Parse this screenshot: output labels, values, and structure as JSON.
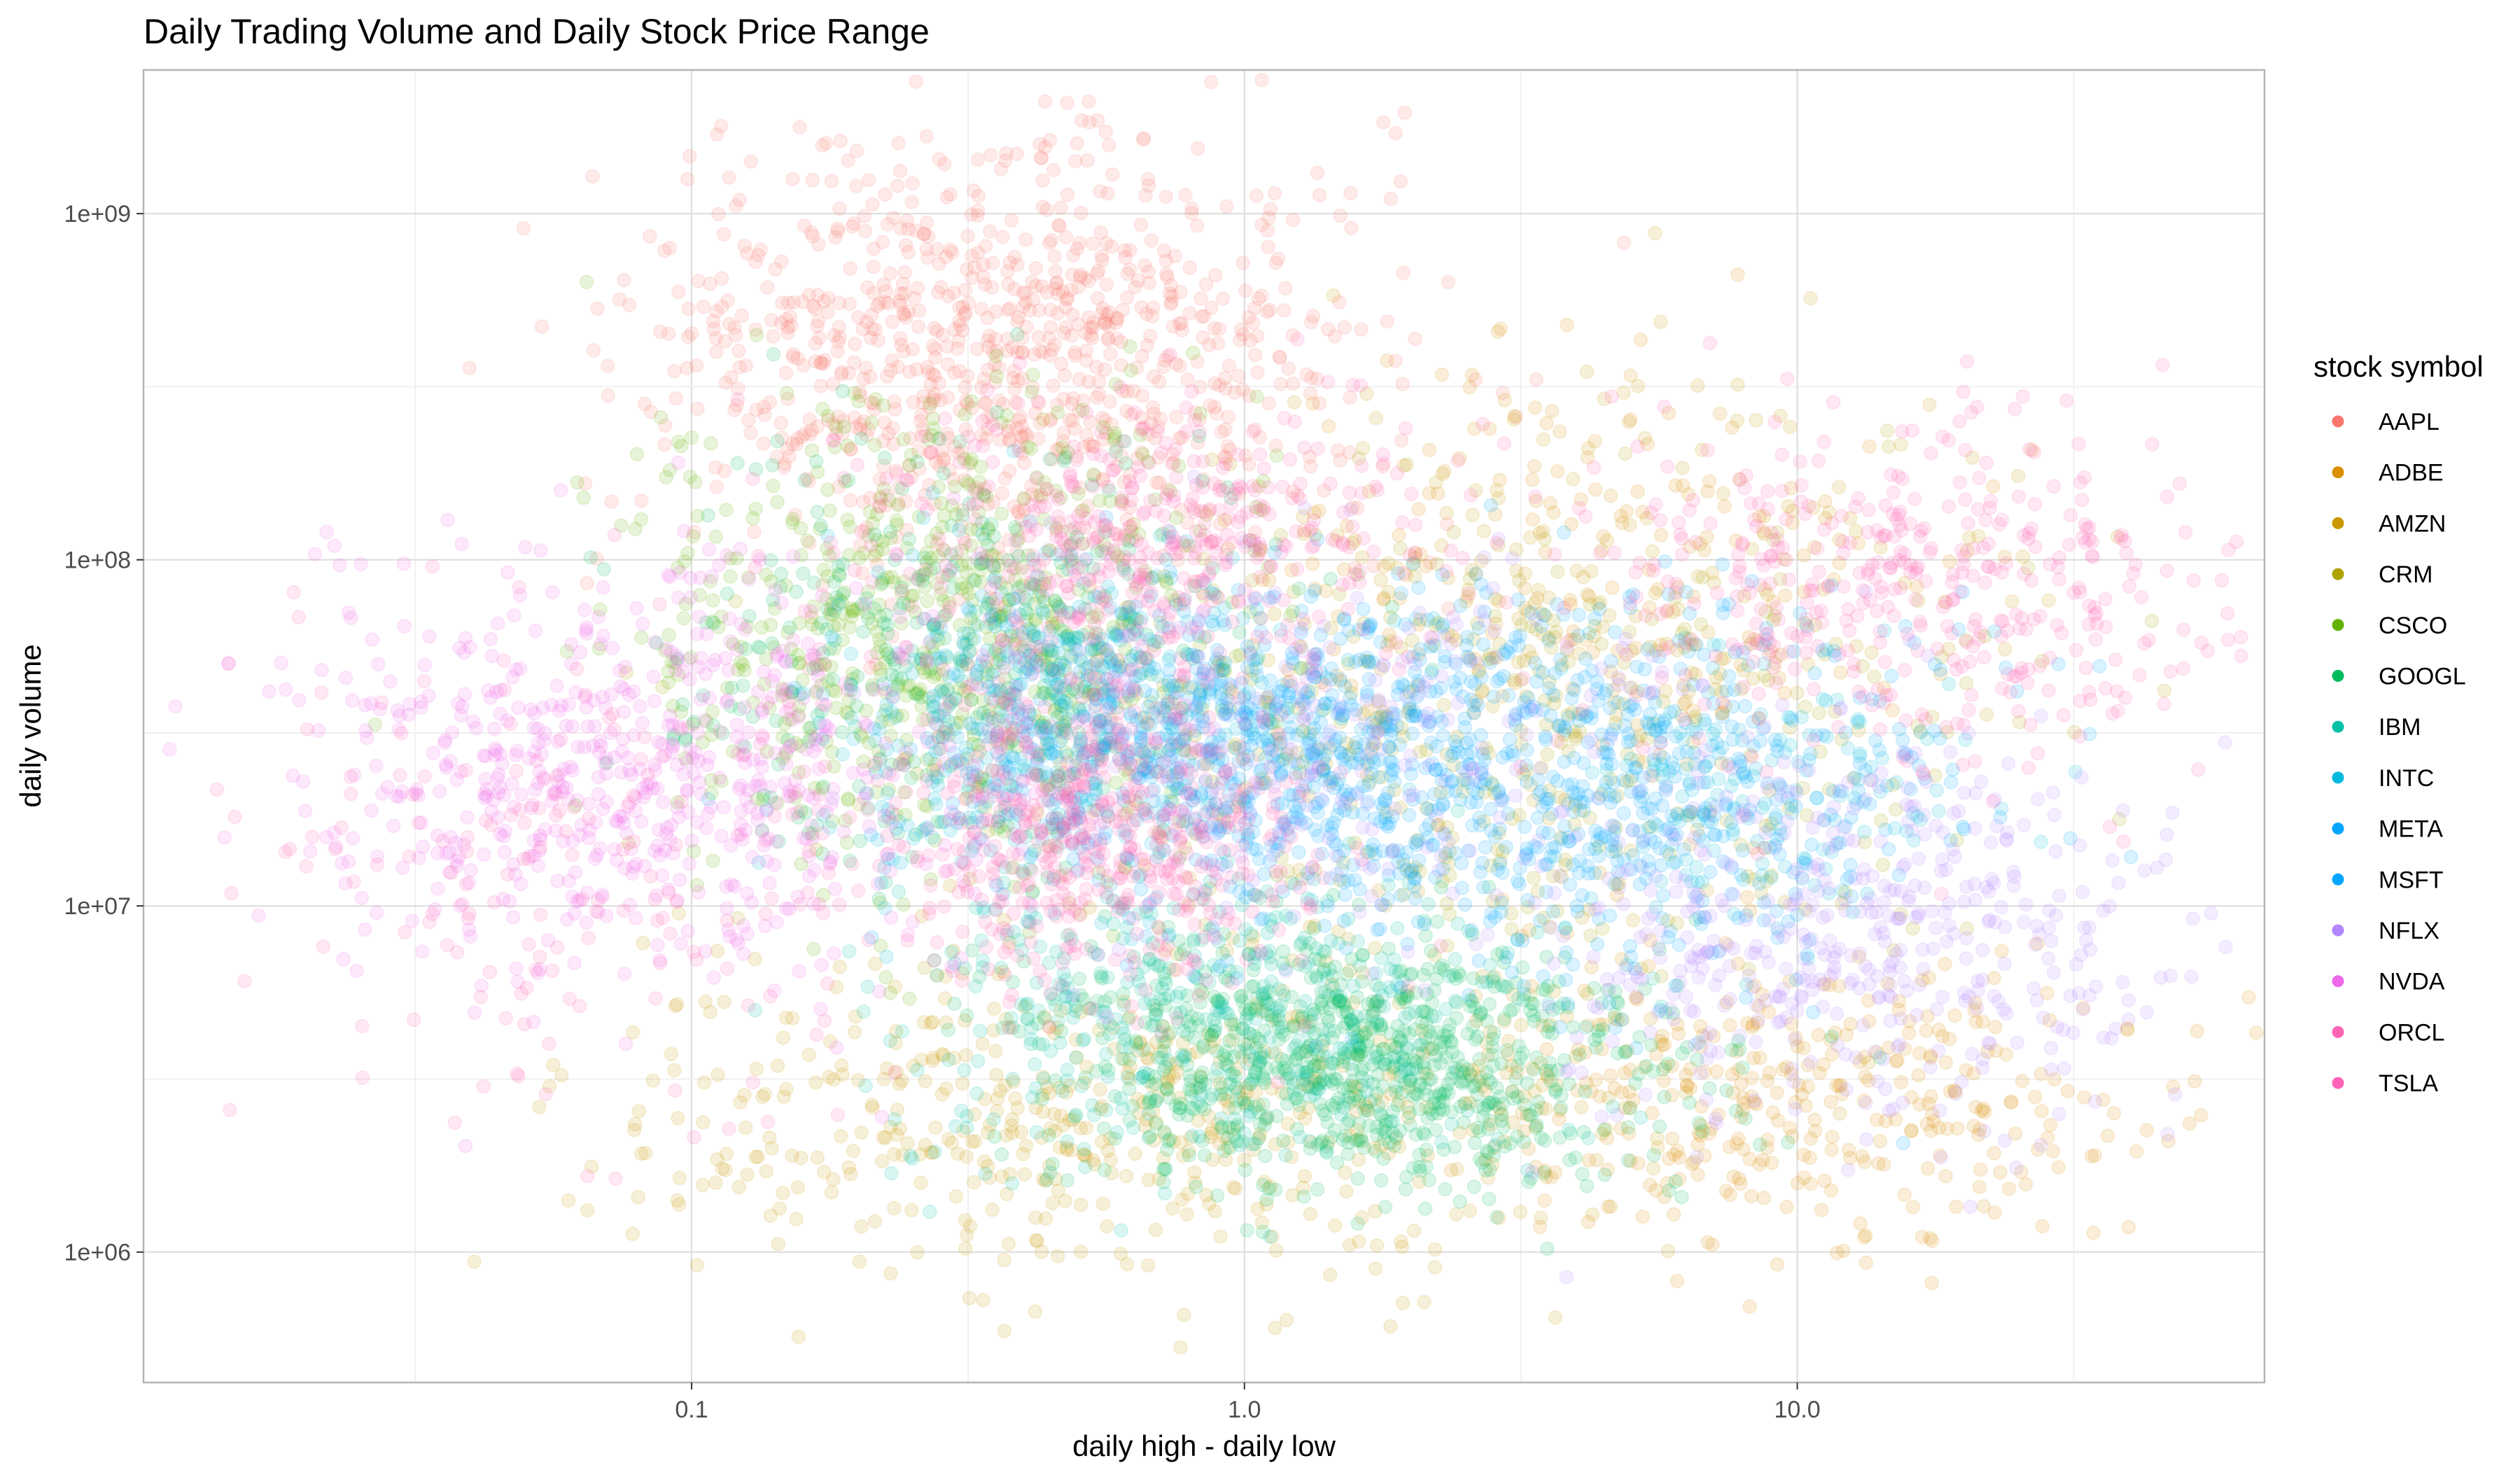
{
  "chart_data": {
    "type": "scatter",
    "title": "Daily Trading Volume and Daily Stock Price Range",
    "xlabel": "daily high - daily low",
    "ylabel": "daily volume",
    "x_scale": "log10",
    "y_scale": "log10",
    "xlim": [
      0.0102,
      70
    ],
    "ylim": [
      420000,
      2600000000
    ],
    "x_ticks": [
      0.1,
      1.0,
      10.0
    ],
    "x_tick_labels": [
      "0.1",
      "1.0",
      "10.0"
    ],
    "y_ticks": [
      1000000,
      10000000,
      100000000,
      1000000000
    ],
    "y_tick_labels": [
      "1e+06",
      "1e+07",
      "1e+08",
      "1e+09"
    ],
    "grid": true,
    "point_alpha": 0.15,
    "legend": {
      "title": "stock symbol",
      "position": "right"
    },
    "series": [
      {
        "name": "AAPL",
        "color": "#F8766D",
        "clusters": [
          {
            "x": 0.38,
            "y": 400000000,
            "sx": 0.32,
            "sy": 0.32,
            "n": 950
          }
        ]
      },
      {
        "name": "ADBE",
        "color": "#DB8E00",
        "clusters": [
          {
            "x": 10.0,
            "y": 2800000,
            "sx": 0.32,
            "sy": 0.22,
            "n": 380
          },
          {
            "x": 4.0,
            "y": 100000000,
            "sx": 0.3,
            "sy": 0.3,
            "n": 180
          }
        ]
      },
      {
        "name": "AMZN",
        "color": "#C79800",
        "clusters": [
          {
            "x": 0.6,
            "y": 2600000,
            "sx": 0.45,
            "sy": 0.25,
            "n": 550
          },
          {
            "x": 5.0,
            "y": 80000000,
            "sx": 0.35,
            "sy": 0.35,
            "n": 200
          }
        ]
      },
      {
        "name": "CRM",
        "color": "#AEA200",
        "clusters": [
          {
            "x": 2.5,
            "y": 30000000,
            "sx": 0.45,
            "sy": 0.35,
            "n": 420
          }
        ]
      },
      {
        "name": "CSCO",
        "color": "#64B200",
        "clusters": [
          {
            "x": 0.28,
            "y": 60000000,
            "sx": 0.28,
            "sy": 0.35,
            "n": 650
          }
        ]
      },
      {
        "name": "GOOGL",
        "color": "#00BD5C",
        "clusters": [
          {
            "x": 1.6,
            "y": 3500000,
            "sx": 0.28,
            "sy": 0.18,
            "n": 850
          },
          {
            "x": 0.3,
            "y": 50000000,
            "sx": 0.28,
            "sy": 0.3,
            "n": 350
          }
        ]
      },
      {
        "name": "IBM",
        "color": "#00C1A7",
        "clusters": [
          {
            "x": 0.9,
            "y": 5000000,
            "sx": 0.3,
            "sy": 0.22,
            "n": 400
          }
        ]
      },
      {
        "name": "INTC",
        "color": "#00BADE",
        "clusters": [
          {
            "x": 0.45,
            "y": 35000000,
            "sx": 0.22,
            "sy": 0.25,
            "n": 500
          },
          {
            "x": 8.0,
            "y": 22000000,
            "sx": 0.18,
            "sy": 0.18,
            "n": 180
          }
        ]
      },
      {
        "name": "META",
        "color": "#00A6FF",
        "clusters": [
          {
            "x": 4.0,
            "y": 22000000,
            "sx": 0.32,
            "sy": 0.28,
            "n": 650
          }
        ]
      },
      {
        "name": "MSFT",
        "color": "#00A6FF",
        "clusters": [
          {
            "x": 1.0,
            "y": 30000000,
            "sx": 0.28,
            "sy": 0.2,
            "n": 600
          }
        ]
      },
      {
        "name": "NFLX",
        "color": "#B385FF",
        "clusters": [
          {
            "x": 12.0,
            "y": 8000000,
            "sx": 0.28,
            "sy": 0.28,
            "n": 480
          },
          {
            "x": 1.5,
            "y": 30000000,
            "sx": 0.3,
            "sy": 0.25,
            "n": 250
          }
        ]
      },
      {
        "name": "NVDA",
        "color": "#EF67EB",
        "clusters": [
          {
            "x": 0.08,
            "y": 25000000,
            "sx": 0.3,
            "sy": 0.3,
            "n": 650
          }
        ]
      },
      {
        "name": "ORCL",
        "color": "#FF63B6",
        "clusters": [
          {
            "x": 0.55,
            "y": 18000000,
            "sx": 0.2,
            "sy": 0.25,
            "n": 650
          },
          {
            "x": 0.06,
            "y": 12000000,
            "sx": 0.35,
            "sy": 0.35,
            "n": 180
          }
        ]
      },
      {
        "name": "TSLA",
        "color": "#FF63B6",
        "clusters": [
          {
            "x": 15.0,
            "y": 80000000,
            "sx": 0.3,
            "sy": 0.25,
            "n": 450
          },
          {
            "x": 0.7,
            "y": 110000000,
            "sx": 0.25,
            "sy": 0.22,
            "n": 450
          }
        ]
      }
    ]
  }
}
